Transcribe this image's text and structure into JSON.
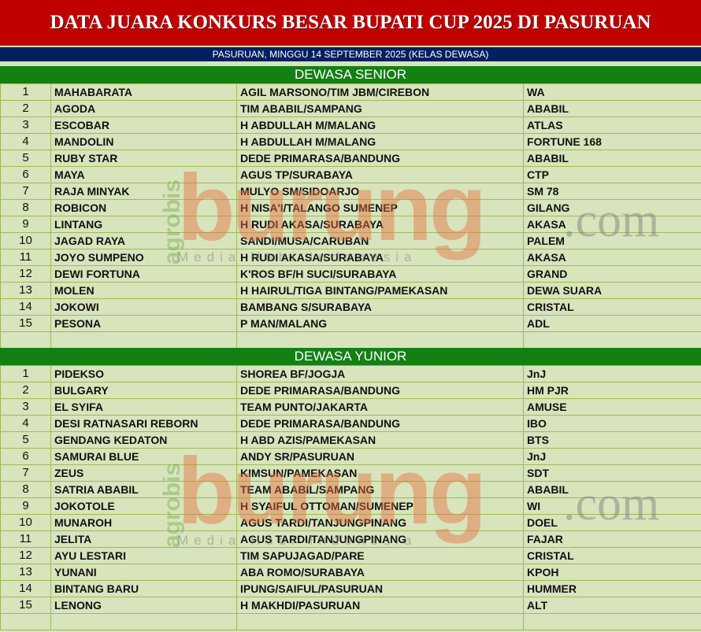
{
  "title": "DATA JUARA KONKURS BESAR BUPATI CUP 2025 DI PASURUAN",
  "subtitle": "PASURUAN, MINGGU  14 SEPTEMBER 2025 (KELAS DEWASA)",
  "colors": {
    "title_bg": "#c00000",
    "subtitle_bg": "#002060",
    "section_bg": "#128012",
    "table_bg": "#d8e4bc",
    "grid": "#9bbb59"
  },
  "watermark": {
    "brand": "burung",
    "suffix": ".com",
    "tagline": "Media Hobi Indonesia",
    "prefix": "agrobis"
  },
  "sections": [
    {
      "name": "DEWASA SENIOR",
      "rows": [
        [
          "1",
          "MAHABARATA",
          "AGIL MARSONO/TIM JBM/CIREBON",
          "WA"
        ],
        [
          "2",
          "AGODA",
          "TIM ABABIL/SAMPANG",
          "ABABIL"
        ],
        [
          "3",
          "ESCOBAR",
          "H ABDULLAH M/MALANG",
          "ATLAS"
        ],
        [
          "4",
          "MANDOLIN",
          "H ABDULLAH M/MALANG",
          "FORTUNE 168"
        ],
        [
          "5",
          "RUBY STAR",
          "DEDE PRIMARASA/BANDUNG",
          "ABABIL"
        ],
        [
          "6",
          "MAYA",
          "AGUS TP/SURABAYA",
          "CTP"
        ],
        [
          "7",
          "RAJA MINYAK",
          "MULYO SM/SIDOARJO",
          "SM 78"
        ],
        [
          "8",
          "ROBICON",
          "H NISA'I/TALANGO SUMENEP",
          "GILANG"
        ],
        [
          "9",
          "LINTANG",
          "H RUDI AKASA/SURABAYA",
          "AKASA"
        ],
        [
          "10",
          "JAGAD RAYA",
          "SANDI/MUSA/CARUBAN",
          "PALEM"
        ],
        [
          "11",
          "JOYO SUMPENO",
          "H RUDI AKASA/SURABAYA",
          "AKASA"
        ],
        [
          "12",
          "DEWI FORTUNA",
          "K'ROS BF/H SUCI/SURABAYA",
          "GRAND"
        ],
        [
          "13",
          "MOLEN",
          "H HAIRUL/TIGA BINTANG/PAMEKASAN",
          "DEWA SUARA"
        ],
        [
          "14",
          "JOKOWI",
          "BAMBANG S/SURABAYA",
          "CRISTAL"
        ],
        [
          "15",
          "PESONA",
          "P MAN/MALANG",
          "ADL"
        ]
      ]
    },
    {
      "name": "DEWASA YUNIOR",
      "rows": [
        [
          "1",
          "PIDEKSO",
          "SHOREA BF/JOGJA",
          "JnJ"
        ],
        [
          "2",
          "BULGARY",
          "DEDE PRIMARASA/BANDUNG",
          "HM PJR"
        ],
        [
          "3",
          "EL SYIFA",
          "TEAM PUNTO/JAKARTA",
          "AMUSE"
        ],
        [
          "4",
          "DESI RATNASARI REBORN",
          "DEDE PRIMARASA/BANDUNG",
          "IBO"
        ],
        [
          "5",
          "GENDANG KEDATON",
          "H ABD AZIS/PAMEKASAN",
          "BTS"
        ],
        [
          "6",
          "SAMURAI BLUE",
          "ANDY SR/PASURUAN",
          "JnJ"
        ],
        [
          "7",
          "ZEUS",
          "KIMSUN/PAMEKASAN",
          "SDT"
        ],
        [
          "8",
          "SATRIA ABABIL",
          "TEAM ABABIL/SAMPANG",
          "ABABIL"
        ],
        [
          "9",
          "JOKOTOLE",
          "H SYAIFUL OTTOMAN/SUMENEP",
          "WI"
        ],
        [
          "10",
          "MUNAROH",
          "AGUS TARDI/TANJUNGPINANG",
          "DOEL"
        ],
        [
          "11",
          "JELITA",
          "AGUS TARDI/TANJUNGPINANG",
          "FAJAR"
        ],
        [
          "12",
          "AYU LESTARI",
          "TIM SAPUJAGAD/PARE",
          "CRISTAL"
        ],
        [
          "13",
          "YUNANI",
          "ABA ROMO/SURABAYA",
          "KPOH"
        ],
        [
          "14",
          "BINTANG BARU",
          "IPUNG/SAIFUL/PASURUAN",
          "HUMMER"
        ],
        [
          "15",
          "LENONG",
          "H MAKHDI/PASURUAN",
          "ALT"
        ]
      ]
    }
  ]
}
